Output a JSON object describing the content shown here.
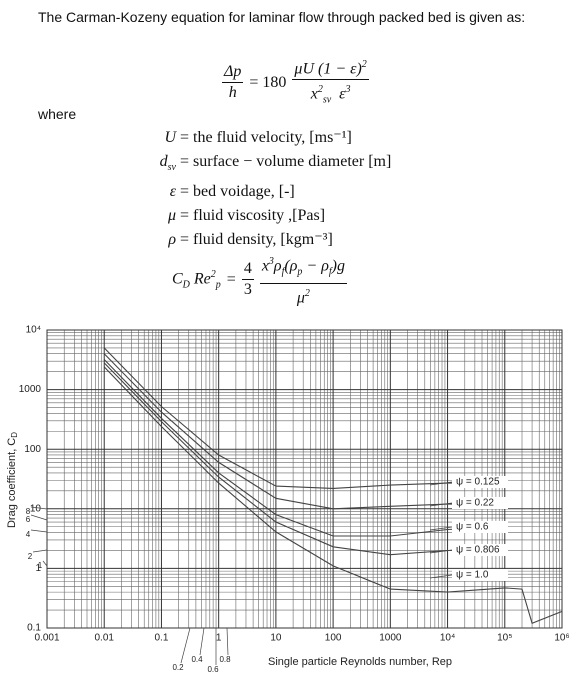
{
  "intro": "The Carman-Kozeny equation for laminar flow through packed bed is given as:",
  "equation_1": {
    "lhs_num": [
      "Δp"
    ],
    "lhs_den": [
      "h"
    ],
    "mid": "= 180",
    "rhs_num": [
      "μU (1 − ε)",
      {
        "sup": "2"
      }
    ],
    "rhs_den": [
      "x",
      {
        "sup": "2"
      },
      {
        "sub": "sv"
      },
      "  ε",
      {
        "sup": "3"
      }
    ]
  },
  "where": "where",
  "definitions": [
    {
      "lhs": [
        "U"
      ],
      "text": "= the fluid velocity, [ms⁻¹]"
    },
    {
      "lhs": [
        "d",
        {
          "sub": "sv"
        }
      ],
      "text": "= surface − volume diameter [m]"
    },
    {
      "lhs": [
        "ε"
      ],
      "text": "= bed voidage, [-]"
    },
    {
      "lhs": [
        "μ"
      ],
      "text": "= fluid viscosity ,[Pas]"
    },
    {
      "lhs": [
        "ρ"
      ],
      "text": "= fluid density, [kgm⁻³]"
    }
  ],
  "equation_2": {
    "lhs": [
      "C",
      {
        "sub": "D"
      },
      " Re",
      {
        "sup": "2"
      },
      {
        "sub": "p"
      }
    ],
    "mid": "=",
    "coef_num": "4",
    "coef_den": "3",
    "num": [
      "x",
      {
        "sup": "3"
      },
      "ρ",
      {
        "sub": "f"
      },
      "(ρ",
      {
        "sub": "p"
      },
      " − ρ",
      {
        "sub": "f"
      },
      ")g"
    ],
    "den": [
      "μ",
      {
        "sup": "2"
      }
    ]
  },
  "chart_data": {
    "type": "line",
    "x_label": "Single particle Reynolds number, Rep",
    "y_label": "Drag coefficient, C",
    "y_label_sub": "D",
    "x": [
      0.01,
      0.1,
      1,
      10,
      100,
      1000,
      10000,
      100000,
      200000,
      300000,
      1000000
    ],
    "series": [
      {
        "name": "ψ = 0.125",
        "color": "#444444",
        "values": [
          5000,
          520,
          80,
          24,
          22,
          25,
          27,
          27,
          null,
          null,
          null
        ]
      },
      {
        "name": "ψ = 0.22",
        "color": "#444444",
        "values": [
          4000,
          420,
          60,
          15,
          10,
          11,
          12,
          12,
          null,
          null,
          null
        ]
      },
      {
        "name": "ψ = 0.6",
        "color": "#444444",
        "values": [
          3200,
          330,
          40,
          8,
          3.5,
          3.5,
          4.5,
          5,
          null,
          null,
          null
        ]
      },
      {
        "name": "ψ = 0.806",
        "color": "#444444",
        "values": [
          2800,
          290,
          34,
          6,
          2.3,
          1.7,
          2,
          2.1,
          null,
          null,
          null
        ]
      },
      {
        "name": "ψ = 1.0",
        "color": "#444444",
        "values": [
          2400,
          240,
          27,
          4.1,
          1.1,
          0.45,
          0.4,
          0.47,
          0.45,
          0.12,
          0.19
        ]
      }
    ],
    "xlim": [
      0.001,
      1000000
    ],
    "ylim": [
      0.1,
      10000
    ],
    "xticks": [
      0.001,
      0.01,
      0.1,
      1,
      10,
      100,
      1000,
      {
        "value": 10000,
        "label": "10⁴"
      },
      {
        "value": 100000,
        "label": "10⁵"
      },
      {
        "value": 1000000,
        "label": "10⁶"
      }
    ],
    "yticks": [
      0.1,
      1,
      10,
      100,
      1000,
      {
        "value": 10000,
        "label": "10⁴"
      }
    ],
    "log_x": true,
    "log_y": true,
    "grid": "major-minor",
    "annotations": [
      "0.2",
      "0.4",
      "0.6",
      "0.8",
      "8",
      "6",
      "4",
      "2",
      "1"
    ]
  }
}
